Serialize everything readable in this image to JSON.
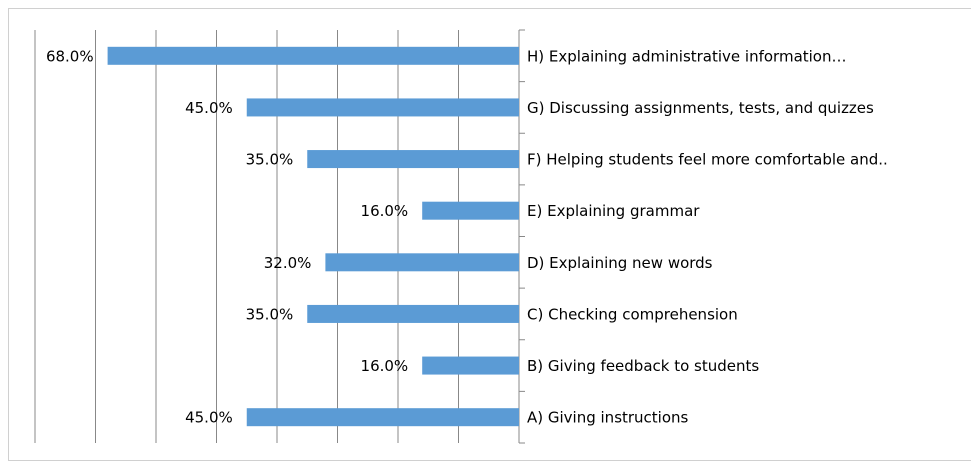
{
  "chart_data": {
    "type": "bar",
    "orientation": "horizontal",
    "x_reversed": true,
    "categories": [
      "H) Explaining administrative information…",
      "G) Discussing assignments, tests, and quizzes",
      "F) Helping students feel more comfortable and..",
      "E) Explaining grammar",
      "D) Explaining new words",
      "C) Checking comprehension",
      "B) Giving feedback to students",
      "A) Giving instructions"
    ],
    "values": [
      68,
      45,
      35,
      16,
      32,
      35,
      16,
      45
    ],
    "value_labels": [
      "68.0%",
      "45.0%",
      "35.0%",
      "16.0%",
      "32.0%",
      "35.0%",
      "16.0%",
      "45.0%"
    ],
    "color": "#5b9bd5",
    "xlim": [
      0,
      80
    ],
    "xticks": [
      0,
      10,
      20,
      30,
      40,
      50,
      60,
      70,
      80
    ],
    "grid": true
  }
}
